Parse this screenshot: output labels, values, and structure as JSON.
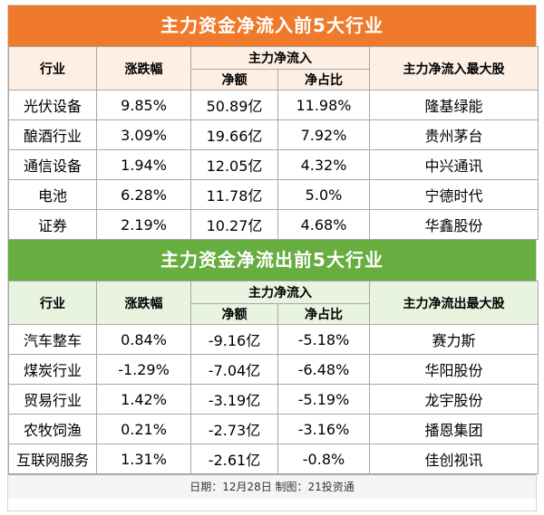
{
  "inflow": {
    "title": "主力资金净流入前5大行业",
    "headers": {
      "industry": "行业",
      "change": "涨跌幅",
      "net_group": "主力净流入",
      "net_amount": "净额",
      "net_ratio": "净占比",
      "top_stock": "主力净流入最大股"
    },
    "rows": [
      {
        "industry": "光伏设备",
        "change": "9.85%",
        "amount": "50.89亿",
        "ratio": "11.98%",
        "stock": "隆基绿能"
      },
      {
        "industry": "酿酒行业",
        "change": "3.09%",
        "amount": "19.66亿",
        "ratio": "7.92%",
        "stock": "贵州茅台"
      },
      {
        "industry": "通信设备",
        "change": "1.94%",
        "amount": "12.05亿",
        "ratio": "4.32%",
        "stock": "中兴通讯"
      },
      {
        "industry": "电池",
        "change": "6.28%",
        "amount": "11.78亿",
        "ratio": "5.0%",
        "stock": "宁德时代"
      },
      {
        "industry": "证券",
        "change": "2.19%",
        "amount": "10.27亿",
        "ratio": "4.68%",
        "stock": "华鑫股份"
      }
    ]
  },
  "outflow": {
    "title": "主力资金净流出前5大行业",
    "headers": {
      "industry": "行业",
      "change": "涨跌幅",
      "net_group": "主力净流入",
      "net_amount": "净额",
      "net_ratio": "净占比",
      "top_stock": "主力净流出最大股"
    },
    "rows": [
      {
        "industry": "汽车整车",
        "change": "0.84%",
        "amount": "-9.16亿",
        "ratio": "-5.18%",
        "stock": "赛力斯"
      },
      {
        "industry": "煤炭行业",
        "change": "-1.29%",
        "amount": "-7.04亿",
        "ratio": "-6.48%",
        "stock": "华阳股份"
      },
      {
        "industry": "贸易行业",
        "change": "1.42%",
        "amount": "-3.19亿",
        "ratio": "-5.19%",
        "stock": "龙宇股份"
      },
      {
        "industry": "农牧饲渔",
        "change": "0.21%",
        "amount": "-2.73亿",
        "ratio": "-3.16%",
        "stock": "播恩集团"
      },
      {
        "industry": "互联网服务",
        "change": "1.31%",
        "amount": "-2.61亿",
        "ratio": "-0.8%",
        "stock": "佳创视讯"
      }
    ]
  },
  "footer": "日期：12月28日 制图：21投资通",
  "colors": {
    "inflow_title": "#ef7a2b",
    "outflow_title": "#67ad40"
  }
}
